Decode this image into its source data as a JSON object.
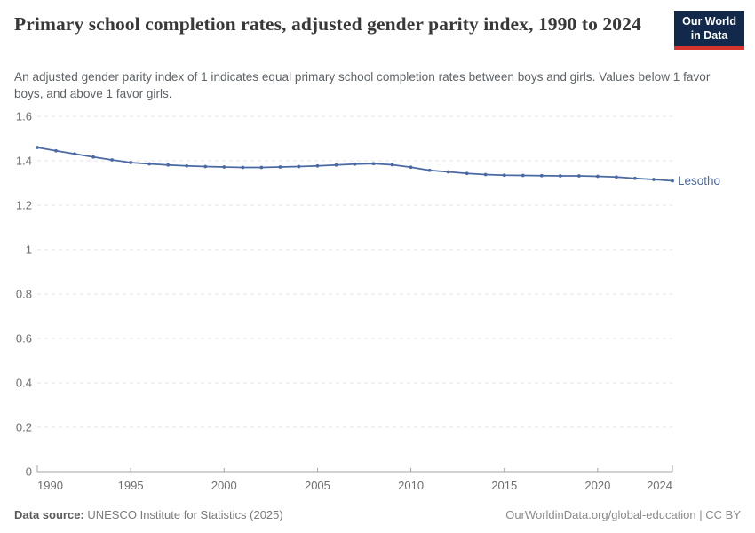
{
  "header": {
    "title": "Primary school completion rates, adjusted gender parity index, 1990 to 2024",
    "subtitle": "An adjusted gender parity index of 1 indicates equal primary school completion rates between boys and girls. Values below 1 favor boys, and above 1 favor girls.",
    "logo": {
      "line1": "Our World",
      "line2": "in Data"
    }
  },
  "chart_data": {
    "type": "line",
    "title": "Primary school completion rates, adjusted gender parity index, 1990 to 2024",
    "xlabel": "",
    "ylabel": "",
    "xlim": [
      1990,
      2024
    ],
    "ylim": [
      0,
      1.6
    ],
    "xticks": [
      1990,
      1995,
      2000,
      2005,
      2010,
      2015,
      2020,
      2024
    ],
    "yticks": [
      0,
      0.2,
      0.4,
      0.6,
      0.8,
      1,
      1.2,
      1.4,
      1.6
    ],
    "grid": "horizontal-dashed",
    "legend_position": "end-of-line-label",
    "series": [
      {
        "name": "Lesotho",
        "color": "#4a69a2",
        "x": [
          1990,
          1991,
          1992,
          1993,
          1994,
          1995,
          1996,
          1997,
          1998,
          1999,
          2000,
          2001,
          2002,
          2003,
          2004,
          2005,
          2006,
          2007,
          2008,
          2009,
          2010,
          2011,
          2012,
          2013,
          2014,
          2015,
          2016,
          2017,
          2018,
          2019,
          2020,
          2021,
          2022,
          2023,
          2024
        ],
        "values": [
          1.46,
          1.445,
          1.431,
          1.417,
          1.404,
          1.392,
          1.386,
          1.381,
          1.377,
          1.374,
          1.372,
          1.37,
          1.37,
          1.372,
          1.374,
          1.377,
          1.381,
          1.385,
          1.387,
          1.382,
          1.371,
          1.357,
          1.35,
          1.343,
          1.338,
          1.335,
          1.334,
          1.333,
          1.332,
          1.332,
          1.33,
          1.327,
          1.321,
          1.316,
          1.31
        ]
      }
    ]
  },
  "footer": {
    "source_label": "Data source:",
    "source_text": " UNESCO Institute for Statistics (2025)",
    "link_text": "OurWorldinData.org/global-education",
    "license_text": " | CC BY"
  },
  "colors": {
    "line": "#4a69a2",
    "logo_bg": "#12294b",
    "logo_red": "#d7342e",
    "grid": "#e3e3e3",
    "axis": "#a3a3a3",
    "tick_text": "#6e6e6e"
  }
}
